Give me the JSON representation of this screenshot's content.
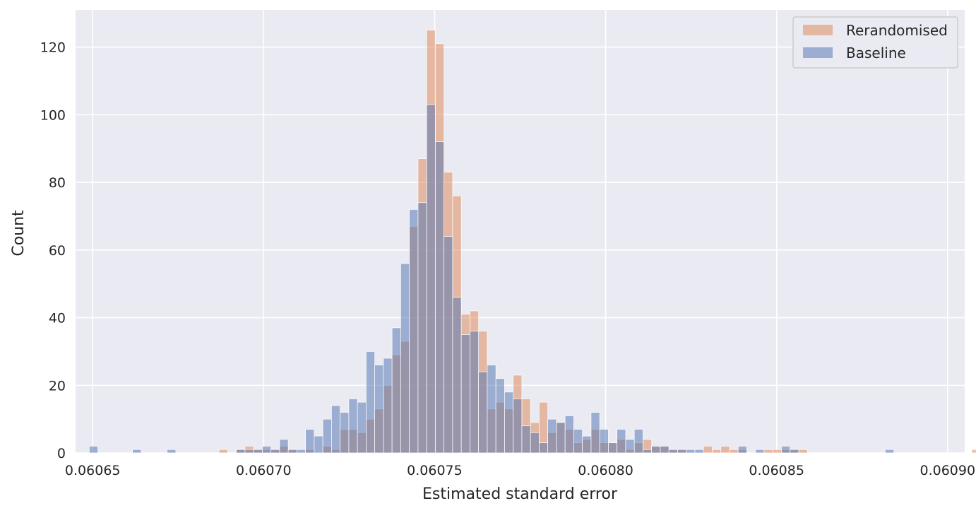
{
  "chart_data": {
    "type": "histogram",
    "title": "",
    "xlabel": "Estimated standard error",
    "ylabel": "Count",
    "xlim": [
      0.060645,
      0.060905
    ],
    "ylim": [
      0,
      131
    ],
    "xticks": [
      0.06065,
      0.0607,
      0.06075,
      0.0608,
      0.06085,
      0.0609
    ],
    "xtick_labels": [
      "0.06065",
      "0.06070",
      "0.06075",
      "0.06080",
      "0.06085",
      "0.06090"
    ],
    "yticks": [
      0,
      20,
      40,
      60,
      80,
      100,
      120
    ],
    "ytick_labels": [
      "0",
      "20",
      "40",
      "60",
      "80",
      "100",
      "120"
    ],
    "grid": true,
    "legend_position": "top-right",
    "bin_start": 0.060649,
    "bin_width": 2.53e-06,
    "series": [
      {
        "name": "Rerandomised",
        "color": "#dd8452",
        "counts": [
          0,
          0,
          0,
          0,
          0,
          0,
          0,
          0,
          0,
          0,
          0,
          0,
          0,
          0,
          0,
          1,
          0,
          1,
          2,
          1,
          1,
          1,
          2,
          1,
          0,
          1,
          0,
          2,
          1,
          7,
          7,
          6,
          10,
          13,
          20,
          29,
          33,
          67,
          87,
          125,
          121,
          83,
          76,
          41,
          42,
          36,
          13,
          15,
          13,
          23,
          16,
          9,
          15,
          6,
          9,
          7,
          3,
          4,
          7,
          3,
          3,
          4,
          1,
          3,
          4,
          2,
          2,
          1,
          1,
          0,
          0,
          2,
          1,
          2,
          1,
          1,
          0,
          0,
          1,
          1,
          1,
          1,
          1,
          0,
          0,
          0,
          0,
          0,
          0,
          0,
          0,
          0,
          0,
          0,
          0,
          0,
          0,
          0,
          0,
          0,
          0,
          0,
          1
        ]
      },
      {
        "name": "Baseline",
        "color": "#4c72b0",
        "counts": [
          2,
          0,
          0,
          0,
          0,
          1,
          0,
          0,
          0,
          1,
          0,
          0,
          0,
          0,
          0,
          0,
          0,
          1,
          1,
          1,
          2,
          1,
          4,
          1,
          1,
          7,
          5,
          10,
          14,
          12,
          16,
          15,
          30,
          26,
          28,
          37,
          56,
          72,
          74,
          103,
          92,
          64,
          46,
          35,
          36,
          24,
          26,
          22,
          18,
          16,
          8,
          6,
          3,
          10,
          9,
          11,
          7,
          5,
          12,
          7,
          3,
          7,
          4,
          7,
          1,
          2,
          2,
          1,
          1,
          1,
          1,
          0,
          0,
          0,
          0,
          2,
          0,
          1,
          0,
          0,
          2,
          1,
          0,
          0,
          0,
          0,
          0,
          0,
          0,
          0,
          0,
          0,
          1,
          0,
          0,
          0,
          0,
          0,
          0,
          0,
          0,
          0,
          0
        ]
      }
    ]
  }
}
